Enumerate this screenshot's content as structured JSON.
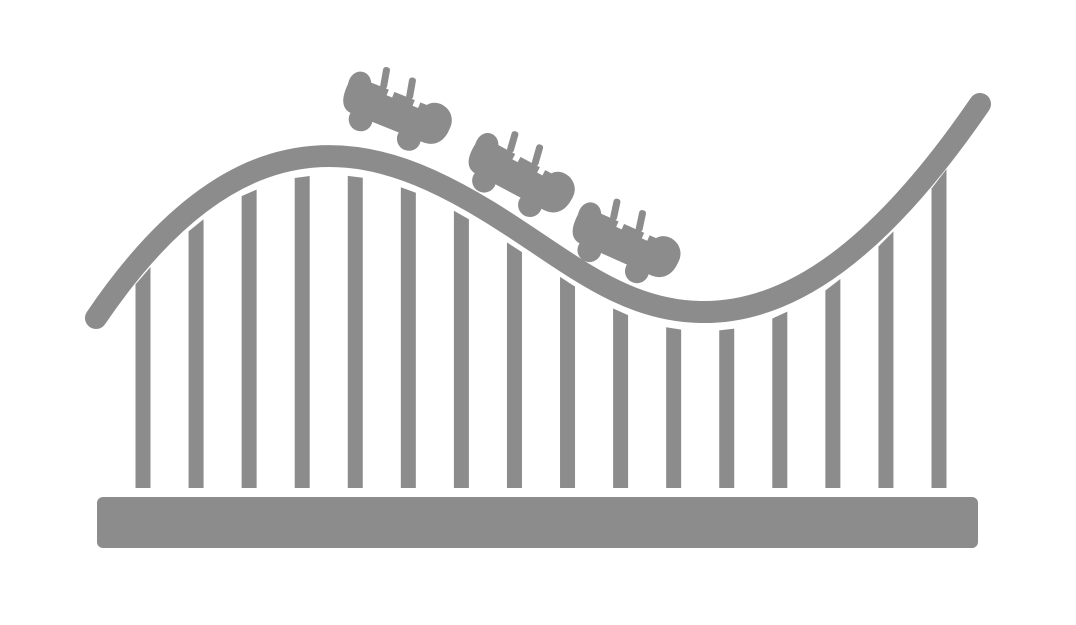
{
  "icon": {
    "name": "roller-coaster-icon",
    "color": "#8c8c8c",
    "background": "#ffffff",
    "support_count": 16,
    "car_count": 3
  }
}
